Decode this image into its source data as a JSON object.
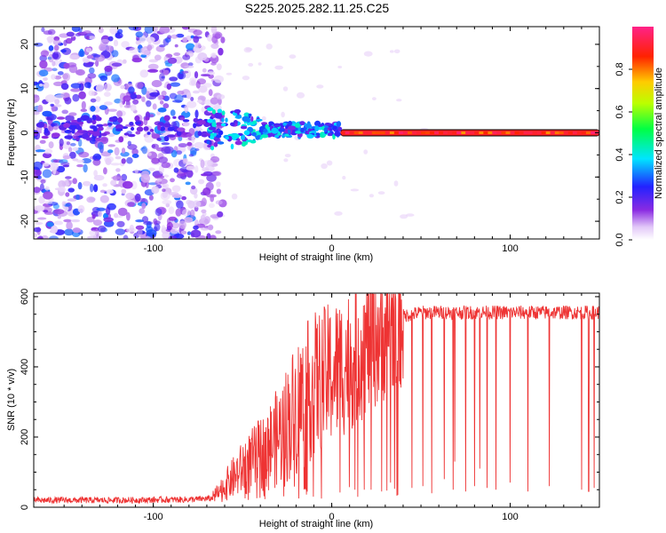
{
  "title": "S225.2025.282.11.25.C25",
  "chart_data": [
    {
      "type": "heatmap",
      "name": "spectrogram",
      "xlabel": "Height of straight line (km)",
      "ylabel": "Frequency (Hz)",
      "xlim": [
        -167,
        150
      ],
      "ylim": [
        -24,
        24
      ],
      "xticks": [
        -100,
        0,
        100
      ],
      "yticks": [
        -20,
        -10,
        0,
        10,
        20
      ],
      "xtick_labels": [
        "-100",
        "0",
        "100"
      ],
      "ytick_labels": [
        "-20",
        "-10",
        "0",
        "10",
        "20"
      ],
      "colorbar": {
        "label": "Normalized spectral amplitude",
        "ticks": [
          0.0,
          0.2,
          0.4,
          0.6,
          0.8
        ],
        "tick_labels": [
          "0.0",
          "0.2",
          "0.4",
          "0.6",
          "0.8"
        ],
        "range": [
          0,
          1
        ],
        "colormap": "rainbow (white at 0, violet, blue, cyan, green, yellow, red, magenta at 1)"
      },
      "features": [
        {
          "desc": "scattered weak noise blobs",
          "x_range": [
            -167,
            -67
          ],
          "freq_range": [
            -24,
            24
          ],
          "amplitude": [
            0.0,
            0.3
          ]
        },
        {
          "desc": "wandering signal track",
          "x_range": [
            -70,
            5
          ],
          "freq_range": [
            -3,
            5
          ],
          "amplitude": [
            0.2,
            0.5
          ]
        },
        {
          "desc": "steady carrier line",
          "x_range": [
            5,
            150
          ],
          "freq_hz": 0,
          "amplitude": [
            0.75,
            1.0
          ]
        }
      ]
    },
    {
      "type": "line",
      "name": "snr",
      "xlabel": "Height of straight line (km)",
      "ylabel": "SNR (10 * v/v)",
      "xlim": [
        -167,
        150
      ],
      "ylim": [
        0,
        610
      ],
      "xticks": [
        -100,
        0,
        100
      ],
      "yticks": [
        0,
        200,
        400,
        600
      ],
      "xtick_labels": [
        "-100",
        "0",
        "100"
      ],
      "ytick_labels": [
        "0",
        "200",
        "400",
        "600"
      ],
      "color": "#ee3333",
      "series": [
        {
          "name": "SNR",
          "x": [
            -167,
            -120,
            -80,
            -67,
            -60,
            -50,
            -40,
            -30,
            -20,
            -10,
            0,
            10,
            20,
            30,
            40,
            50,
            60,
            80,
            100,
            120,
            150
          ],
          "values": [
            20,
            20,
            22,
            25,
            60,
            110,
            150,
            200,
            280,
            350,
            380,
            420,
            470,
            510,
            545,
            555,
            555,
            555,
            555,
            555,
            555
          ]
        }
      ],
      "dropouts_x": [
        22,
        28,
        33,
        37,
        45,
        51,
        56,
        63,
        68,
        69,
        75,
        80,
        83,
        87,
        92,
        100,
        110,
        122,
        140,
        144,
        147
      ],
      "dropouts_min": [
        50,
        45,
        70,
        35,
        55,
        60,
        40,
        80,
        50,
        130,
        45,
        60,
        110,
        55,
        50,
        70,
        45,
        60,
        50,
        45,
        55
      ]
    }
  ]
}
